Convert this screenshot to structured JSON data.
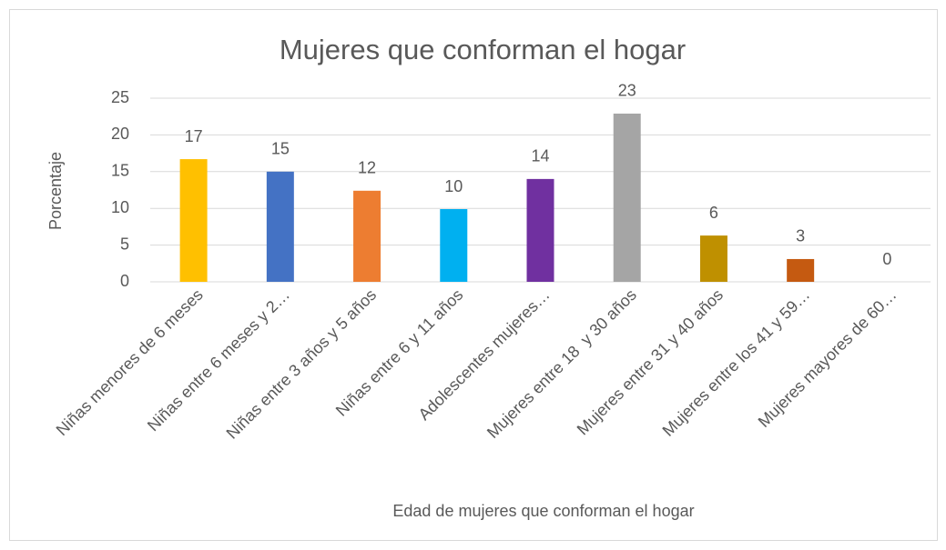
{
  "chart_data": {
    "type": "bar",
    "title": "Mujeres que conforman el hogar",
    "x_label": "Edad de mujeres que conforman el hogar",
    "y_label": "Porcentaje",
    "categories": [
      "Niñas menores de 6 meses",
      "Niñas entre 6 meses y 2…",
      "Niñas entre 3 años y 5 años",
      "Niñas entre 6 y 11 años",
      "Adolescentes mujeres…",
      "Mujeres entre 18  y 30 años",
      "Mujeres entre 31 y 40 años",
      "Mujeres entre los 41 y 59…",
      "Mujeres mayores de 60…"
    ],
    "values": [
      16.7,
      15,
      12.4,
      9.9,
      14,
      22.9,
      6.3,
      3.1,
      0
    ],
    "value_labels": [
      "17",
      "15",
      "12",
      "10",
      "14",
      "23",
      "6",
      "3",
      "0"
    ],
    "colors": [
      "#FFC000",
      "#4472C4",
      "#ED7D31",
      "#00B0F0",
      "#7030A0",
      "#A5A5A5",
      "#BF9000",
      "#C55A11",
      "#264478"
    ],
    "ylim": [
      0,
      25
    ],
    "yticks": [
      0,
      5,
      10,
      15,
      20,
      25
    ],
    "grid": true
  }
}
